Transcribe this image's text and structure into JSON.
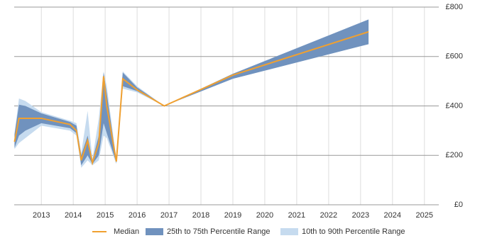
{
  "chart_data": {
    "type": "line",
    "x": [
      2012.16,
      2012.3,
      2012.5,
      2013.0,
      2013.9,
      2014.1,
      2014.25,
      2014.45,
      2014.6,
      2014.8,
      2014.95,
      2015.05,
      2015.35,
      2015.55,
      2016.0,
      2016.85,
      2019.0,
      2023.25
    ],
    "series": [
      {
        "name": "10th to 90th Percentile Range",
        "color": "#c6dbef",
        "kind": "band",
        "lower": [
          225,
          250,
          270,
          320,
          300,
          280,
          150,
          180,
          160,
          180,
          280,
          270,
          165,
          470,
          455,
          400,
          510,
          650
        ],
        "upper": [
          290,
          430,
          420,
          375,
          340,
          330,
          210,
          380,
          185,
          350,
          540,
          480,
          185,
          540,
          480,
          400,
          530,
          750
        ]
      },
      {
        "name": "25th to 75th Percentile Range",
        "color": "#7092be",
        "kind": "band",
        "lower": [
          230,
          280,
          300,
          330,
          310,
          290,
          160,
          200,
          165,
          200,
          330,
          290,
          170,
          480,
          460,
          400,
          510,
          650
        ],
        "upper": [
          285,
          405,
          400,
          370,
          335,
          320,
          200,
          280,
          180,
          280,
          535,
          450,
          180,
          535,
          475,
          400,
          530,
          750
        ]
      },
      {
        "name": "Median",
        "color": "#f0a030",
        "kind": "line",
        "values": [
          255,
          350,
          350,
          350,
          325,
          300,
          180,
          260,
          170,
          250,
          520,
          400,
          175,
          510,
          465,
          400,
          525,
          700
        ]
      }
    ],
    "xlim": [
      2012.15,
      2025.45
    ],
    "xticks": [
      2013,
      2014,
      2015,
      2016,
      2017,
      2018,
      2019,
      2020,
      2021,
      2022,
      2023,
      2024,
      2025
    ],
    "ylim": [
      0,
      800
    ],
    "yticks": [
      {
        "value": 0,
        "label": "£0"
      },
      {
        "value": 200,
        "label": "£200"
      },
      {
        "value": 400,
        "label": "£400"
      },
      {
        "value": 600,
        "label": "£600"
      },
      {
        "value": 800,
        "label": "£800"
      }
    ],
    "grid": true
  }
}
